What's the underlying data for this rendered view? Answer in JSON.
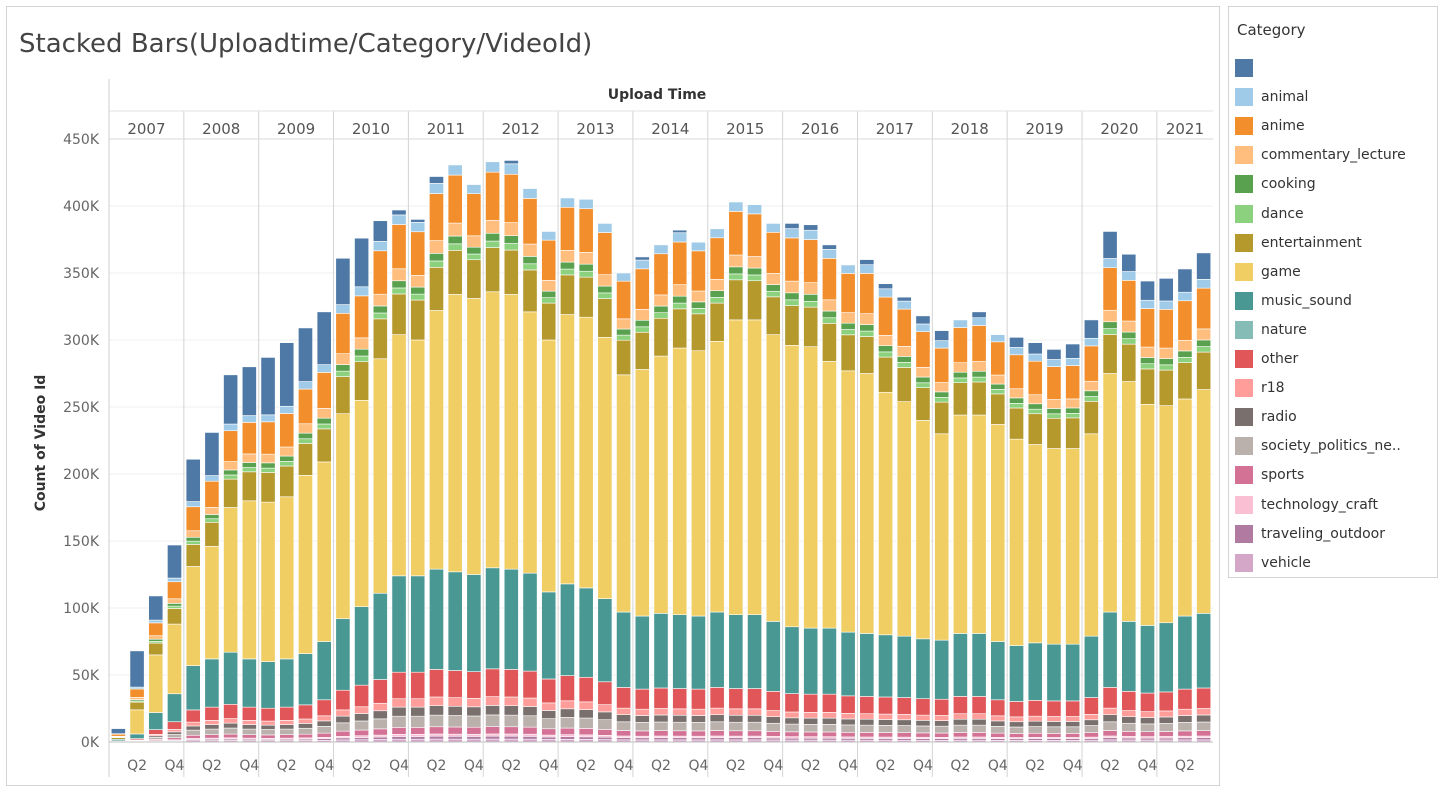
{
  "chart_data": {
    "type": "bar",
    "stacked": true,
    "title": "Stacked Bars(Uploadtime/Category/VideoId)",
    "xlabel": "Upload Time",
    "ylabel": "Count of Video Id",
    "ylim": [
      0,
      450000
    ],
    "yticks": [
      0,
      50000,
      100000,
      150000,
      200000,
      250000,
      300000,
      350000,
      400000,
      450000
    ],
    "ytick_labels": [
      "0K",
      "50K",
      "100K",
      "150K",
      "200K",
      "250K",
      "300K",
      "350K",
      "400K",
      "450K"
    ],
    "grid": true,
    "legend_title": "Category",
    "legend_position": "right",
    "years": [
      "2007",
      "2008",
      "2009",
      "2010",
      "2011",
      "2012",
      "2013",
      "2014",
      "2015",
      "2016",
      "2017",
      "2018",
      "2019",
      "2020",
      "2021"
    ],
    "quarter_tick_labels": [
      "Q2",
      "Q4"
    ],
    "categories": [
      "2007 Q1",
      "2007 Q2",
      "2007 Q3",
      "2007 Q4",
      "2008 Q1",
      "2008 Q2",
      "2008 Q3",
      "2008 Q4",
      "2009 Q1",
      "2009 Q2",
      "2009 Q3",
      "2009 Q4",
      "2010 Q1",
      "2010 Q2",
      "2010 Q3",
      "2010 Q4",
      "2011 Q1",
      "2011 Q2",
      "2011 Q3",
      "2011 Q4",
      "2012 Q1",
      "2012 Q2",
      "2012 Q3",
      "2012 Q4",
      "2013 Q1",
      "2013 Q2",
      "2013 Q3",
      "2013 Q4",
      "2014 Q1",
      "2014 Q2",
      "2014 Q3",
      "2014 Q4",
      "2015 Q1",
      "2015 Q2",
      "2015 Q3",
      "2015 Q4",
      "2016 Q1",
      "2016 Q2",
      "2016 Q3",
      "2016 Q4",
      "2017 Q1",
      "2017 Q2",
      "2017 Q3",
      "2017 Q4",
      "2018 Q1",
      "2018 Q2",
      "2018 Q3",
      "2018 Q4",
      "2019 Q1",
      "2019 Q2",
      "2019 Q3",
      "2019 Q4",
      "2020 Q1",
      "2020 Q2",
      "2020 Q3",
      "2020 Q4",
      "2021 Q1",
      "2021 Q2",
      "2021 Q3"
    ],
    "series_order": [
      "vehicle",
      "traveling_outdoor",
      "technology_craft",
      "sports",
      "society_politics_ne..",
      "radio",
      "r18",
      "other",
      "nature",
      "music_sound",
      "game",
      "entertainment",
      "dance",
      "cooking",
      "commentary_lecture",
      "anime",
      "animal",
      ""
    ],
    "legend": [
      {
        "name": "",
        "color": "#4e79a7"
      },
      {
        "name": "animal",
        "color": "#a0cbe8"
      },
      {
        "name": "anime",
        "color": "#f28e2b"
      },
      {
        "name": "commentary_lecture",
        "color": "#ffbe7d"
      },
      {
        "name": "cooking",
        "color": "#59a14f"
      },
      {
        "name": "dance",
        "color": "#8cd17d"
      },
      {
        "name": "entertainment",
        "color": "#b6992d"
      },
      {
        "name": "game",
        "color": "#f1ce63"
      },
      {
        "name": "music_sound",
        "color": "#499894"
      },
      {
        "name": "nature",
        "color": "#86bcb6"
      },
      {
        "name": "other",
        "color": "#e15759"
      },
      {
        "name": "r18",
        "color": "#ff9d9a"
      },
      {
        "name": "radio",
        "color": "#79706e"
      },
      {
        "name": "society_politics_ne..",
        "color": "#bab0ac"
      },
      {
        "name": "sports",
        "color": "#d37295"
      },
      {
        "name": "technology_craft",
        "color": "#fabfd2"
      },
      {
        "name": "traveling_outdoor",
        "color": "#b07aa1"
      },
      {
        "name": "vehicle",
        "color": "#d4a6c8"
      }
    ],
    "series": [
      {
        "name": "music_sound_top",
        "values": [
          2000,
          6000,
          22000,
          36000,
          57000,
          62000,
          67000,
          62000,
          60000,
          62000,
          66000,
          75000,
          92000,
          101000,
          111000,
          124000,
          124000,
          129000,
          127000,
          125000,
          130000,
          129000,
          126000,
          112000,
          118000,
          115000,
          107000,
          97000,
          94000,
          96000,
          95000,
          94000,
          97000,
          95000,
          95000,
          90000,
          86000,
          85000,
          85000,
          82000,
          81000,
          80000,
          79000,
          77000,
          76000,
          81000,
          81000,
          75000,
          72000,
          74000,
          73000,
          73000,
          79000,
          97000,
          90000,
          87000,
          89000,
          94000,
          96000
        ]
      },
      {
        "name": "game_top",
        "values": [
          2000,
          24000,
          65000,
          88000,
          131000,
          146000,
          175000,
          180000,
          179000,
          183000,
          199000,
          209000,
          245000,
          255000,
          286000,
          304000,
          300000,
          322000,
          334000,
          331000,
          336000,
          334000,
          321000,
          300000,
          319000,
          317000,
          302000,
          274000,
          278000,
          288000,
          294000,
          292000,
          299000,
          315000,
          315000,
          304000,
          296000,
          295000,
          284000,
          277000,
          275000,
          261000,
          254000,
          240000,
          230000,
          244000,
          244000,
          237000,
          226000,
          222000,
          219000,
          219000,
          230000,
          275000,
          269000,
          252000,
          251000,
          256000,
          263000
        ]
      },
      {
        "name": "total",
        "values": [
          10000,
          68000,
          109000,
          147000,
          211000,
          231000,
          274000,
          280000,
          287000,
          298000,
          309000,
          321000,
          361000,
          376000,
          389000,
          397000,
          390000,
          422000,
          431000,
          416000,
          433000,
          434000,
          413000,
          381000,
          406000,
          405000,
          387000,
          350000,
          362000,
          371000,
          382000,
          373000,
          383000,
          403000,
          401000,
          387000,
          387000,
          386000,
          371000,
          356000,
          360000,
          342000,
          332000,
          318000,
          307000,
          315000,
          321000,
          304000,
          302000,
          298000,
          293000,
          297000,
          315000,
          381000,
          364000,
          344000,
          346000,
          353000,
          365000
        ]
      }
    ]
  }
}
